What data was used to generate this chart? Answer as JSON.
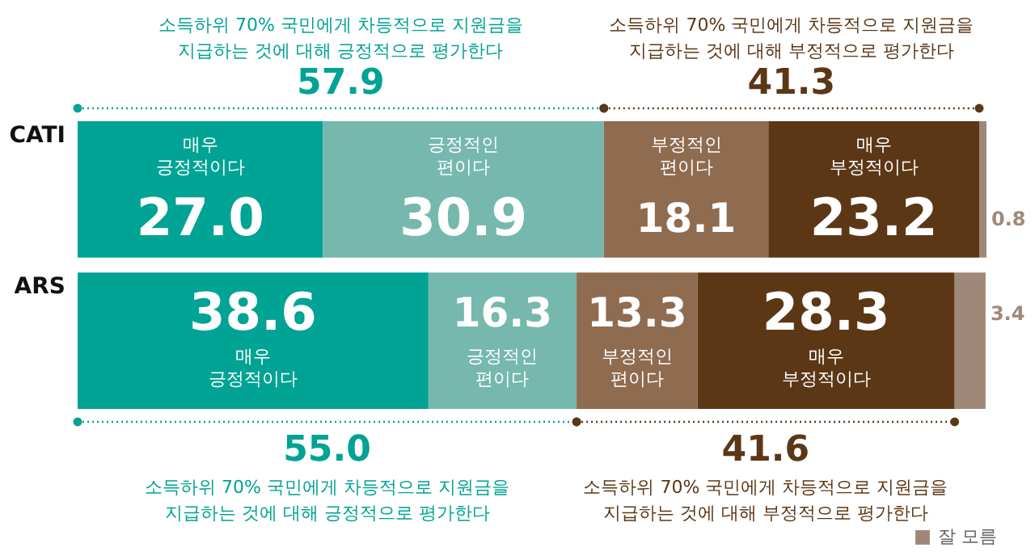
{
  "chart_data": {
    "type": "bar",
    "orientation": "horizontal",
    "stacked": true,
    "legend": "bottom right",
    "categories": [
      "CATI",
      "ARS"
    ],
    "series": [
      {
        "name": "매우 긍정적이다",
        "color": "#00a394",
        "values": [
          27.0,
          38.6
        ],
        "value_labels": [
          "27.0",
          "38.6"
        ]
      },
      {
        "name": "긍정적인 편이다",
        "color": "#76b8ad",
        "values": [
          30.9,
          16.3
        ],
        "value_labels": [
          "30.9",
          "16.3"
        ]
      },
      {
        "name": "부정적인 편이다",
        "color": "#8f6b50",
        "values": [
          18.1,
          13.3
        ],
        "value_labels": [
          "18.1",
          "13.3"
        ]
      },
      {
        "name": "매우 부정적이다",
        "color": "#5c3716",
        "values": [
          23.2,
          28.3
        ],
        "value_labels": [
          "23.2",
          "28.3"
        ]
      },
      {
        "name": "잘 모름",
        "color": "#a08878",
        "values": [
          0.8,
          3.4
        ],
        "value_labels": [
          "0.8",
          "3.4"
        ]
      }
    ],
    "annotations": [
      "57.9",
      "소득하위 70% 국민에게 차등적으로 지원금을\n지급하는 것에 대해 긍정적으로 평가한다",
      "41.3",
      "소득하위 70% 국민에게 차등적으로 지원금을\n지급하는 것에 대해 부정적으로 평가한다",
      "55.0",
      "소득하위 70% 국민에게 차등적으로 지원금을\n지급하는 것에 대해 긍정적으로 평가한다",
      "41.6",
      "소득하위 70% 국민에게 차등적으로 지원금을\n지급하는 것에 대해 부정적으로 평가한다"
    ]
  }
}
